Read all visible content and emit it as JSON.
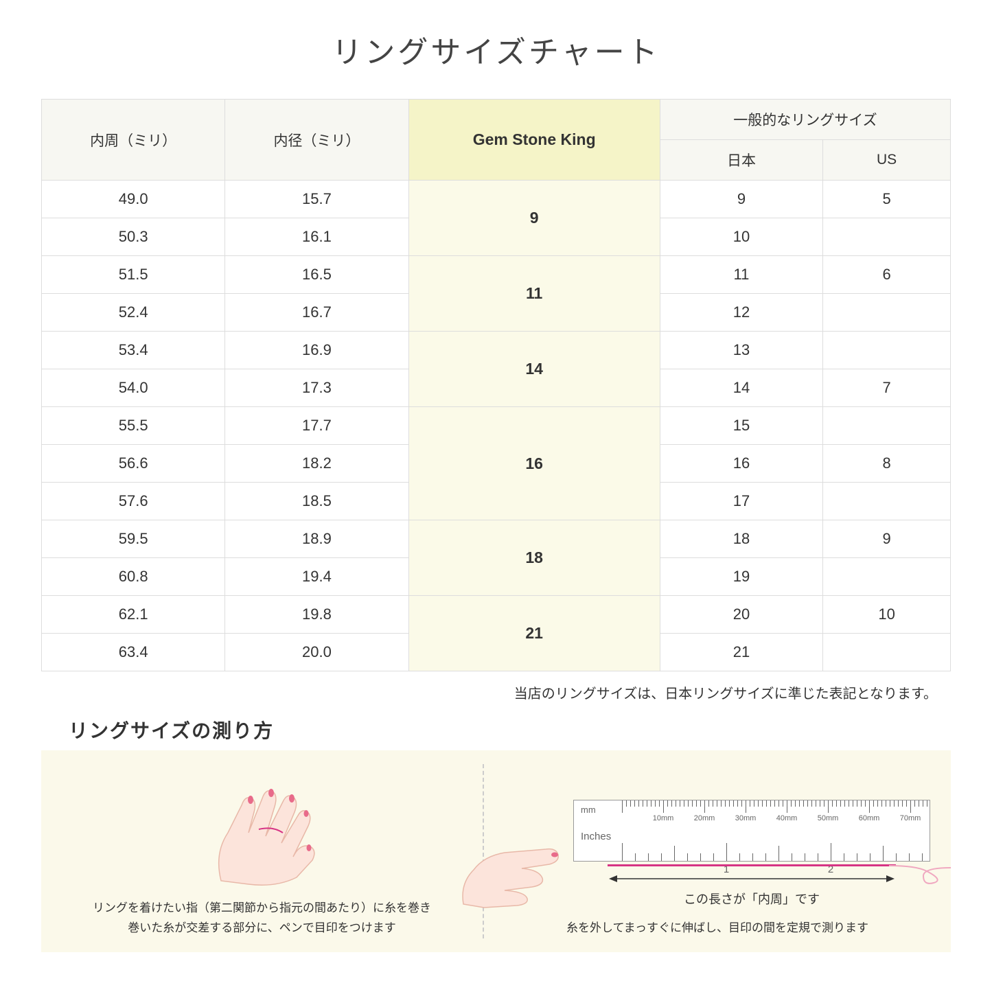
{
  "title": "リングサイズチャート",
  "table": {
    "headers": {
      "circumference": "内周（ミリ）",
      "diameter": "内径（ミリ）",
      "gsk": "Gem Stone King",
      "general": "一般的なリングサイズ",
      "japan": "日本",
      "us": "US"
    },
    "groups": [
      {
        "gsk": "9",
        "rows": [
          {
            "circ": "49.0",
            "dia": "15.7",
            "jp": "9",
            "us": "5"
          },
          {
            "circ": "50.3",
            "dia": "16.1",
            "jp": "10",
            "us": ""
          }
        ]
      },
      {
        "gsk": "11",
        "rows": [
          {
            "circ": "51.5",
            "dia": "16.5",
            "jp": "11",
            "us": "6"
          },
          {
            "circ": "52.4",
            "dia": "16.7",
            "jp": "12",
            "us": ""
          }
        ]
      },
      {
        "gsk": "14",
        "rows": [
          {
            "circ": "53.4",
            "dia": "16.9",
            "jp": "13",
            "us": ""
          },
          {
            "circ": "54.0",
            "dia": "17.3",
            "jp": "14",
            "us": "7"
          }
        ]
      },
      {
        "gsk": "16",
        "rows": [
          {
            "circ": "55.5",
            "dia": "17.7",
            "jp": "15",
            "us": ""
          },
          {
            "circ": "56.6",
            "dia": "18.2",
            "jp": "16",
            "us": "8"
          },
          {
            "circ": "57.6",
            "dia": "18.5",
            "jp": "17",
            "us": ""
          }
        ]
      },
      {
        "gsk": "18",
        "rows": [
          {
            "circ": "59.5",
            "dia": "18.9",
            "jp": "18",
            "us": "9"
          },
          {
            "circ": "60.8",
            "dia": "19.4",
            "jp": "19",
            "us": ""
          }
        ]
      },
      {
        "gsk": "21",
        "rows": [
          {
            "circ": "62.1",
            "dia": "19.8",
            "jp": "20",
            "us": "10"
          },
          {
            "circ": "63.4",
            "dia": "20.0",
            "jp": "21",
            "us": ""
          }
        ]
      }
    ]
  },
  "note": "当店のリングサイズは、日本リングサイズに準じた表記となります。",
  "howto": {
    "title": "リングサイズの測り方",
    "left_caption_line1": "リングを着けたい指（第二関節から指元の間あたり）に糸を巻き",
    "left_caption_line2": "巻いた糸が交差する部分に、ペンで目印をつけます",
    "right_caption": "糸を外してまっすぐに伸ばし、目印の間を定規で測ります",
    "length_label": "この長さが「内周」です",
    "ruler": {
      "mm_label": "mm",
      "inches_label": "Inches",
      "mm_marks": [
        "10mm",
        "20mm",
        "30mm",
        "40mm",
        "50mm",
        "60mm",
        "70mm"
      ],
      "inch_marks": [
        "1",
        "2"
      ]
    }
  },
  "colors": {
    "header_bg": "#f7f7f2",
    "gsk_header_bg": "#f5f4c8",
    "gsk_cell_bg": "#fbfae8",
    "border": "#dddddd",
    "howto_bg": "#fbf9ea",
    "hand_fill": "#fce4db",
    "hand_stroke": "#e8b8a8",
    "nail": "#e86b8a",
    "thread": "#d63384"
  }
}
